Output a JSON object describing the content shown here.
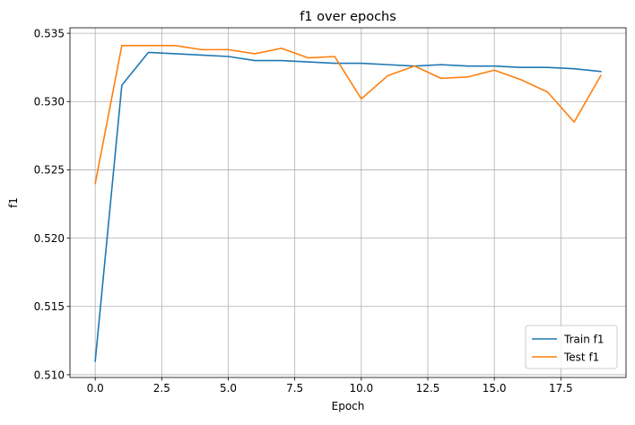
{
  "chart_data": {
    "type": "line",
    "title": "f1 over epochs",
    "xlabel": "Epoch",
    "ylabel": "f1",
    "xlim": [
      -0.95,
      19.95
    ],
    "ylim": [
      0.5098,
      0.5354
    ],
    "x_ticks": [
      0.0,
      2.5,
      5.0,
      7.5,
      10.0,
      12.5,
      15.0,
      17.5
    ],
    "x_tick_labels": [
      "0.0",
      "2.5",
      "5.0",
      "7.5",
      "10.0",
      "12.5",
      "15.0",
      "17.5"
    ],
    "y_ticks": [
      0.51,
      0.515,
      0.52,
      0.525,
      0.53,
      0.535
    ],
    "y_tick_labels": [
      "0.510",
      "0.515",
      "0.520",
      "0.525",
      "0.530",
      "0.535"
    ],
    "grid": true,
    "legend_position": "lower-right",
    "x": [
      0,
      1,
      2,
      3,
      4,
      5,
      6,
      7,
      8,
      9,
      10,
      11,
      12,
      13,
      14,
      15,
      16,
      17,
      18,
      19
    ],
    "series": [
      {
        "name": "Train f1",
        "color": "#1f77b4",
        "values": [
          0.511,
          0.5312,
          0.5336,
          0.5335,
          0.5334,
          0.5333,
          0.533,
          0.533,
          0.5329,
          0.5328,
          0.5328,
          0.5327,
          0.5326,
          0.5327,
          0.5326,
          0.5326,
          0.5325,
          0.5325,
          0.5324,
          0.5322
        ]
      },
      {
        "name": "Test f1",
        "color": "#ff7f0e",
        "values": [
          0.524,
          0.5341,
          0.5341,
          0.5341,
          0.5338,
          0.5338,
          0.5335,
          0.5339,
          0.5332,
          0.5333,
          0.5302,
          0.5319,
          0.5326,
          0.5317,
          0.5318,
          0.5323,
          0.5316,
          0.5307,
          0.5285,
          0.5319
        ]
      }
    ]
  }
}
